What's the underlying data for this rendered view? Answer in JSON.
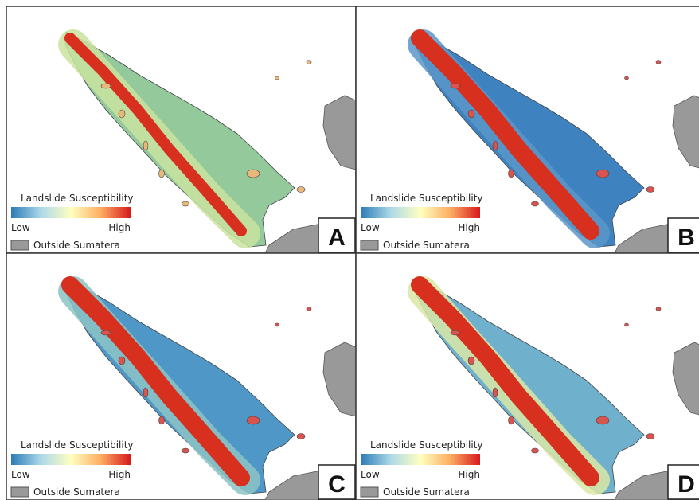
{
  "panels": [
    {
      "label": "A",
      "legend": {
        "title": "Landslide Susceptibility",
        "low": "Low",
        "high": "High",
        "outside": "Outside Sumatera"
      }
    },
    {
      "label": "B",
      "legend": {
        "title": "Landslide Susceptibility",
        "low": "Low",
        "high": "High",
        "outside": "Outside Sumatera"
      }
    },
    {
      "label": "C",
      "legend": {
        "title": "Landslide Susceptibility",
        "low": "Low",
        "high": "High",
        "outside": "Outside Sumatera"
      }
    },
    {
      "label": "D",
      "legend": {
        "title": "Landslide Susceptibility",
        "low": "Low",
        "high": "High",
        "outside": "Outside Sumatera"
      }
    }
  ]
}
